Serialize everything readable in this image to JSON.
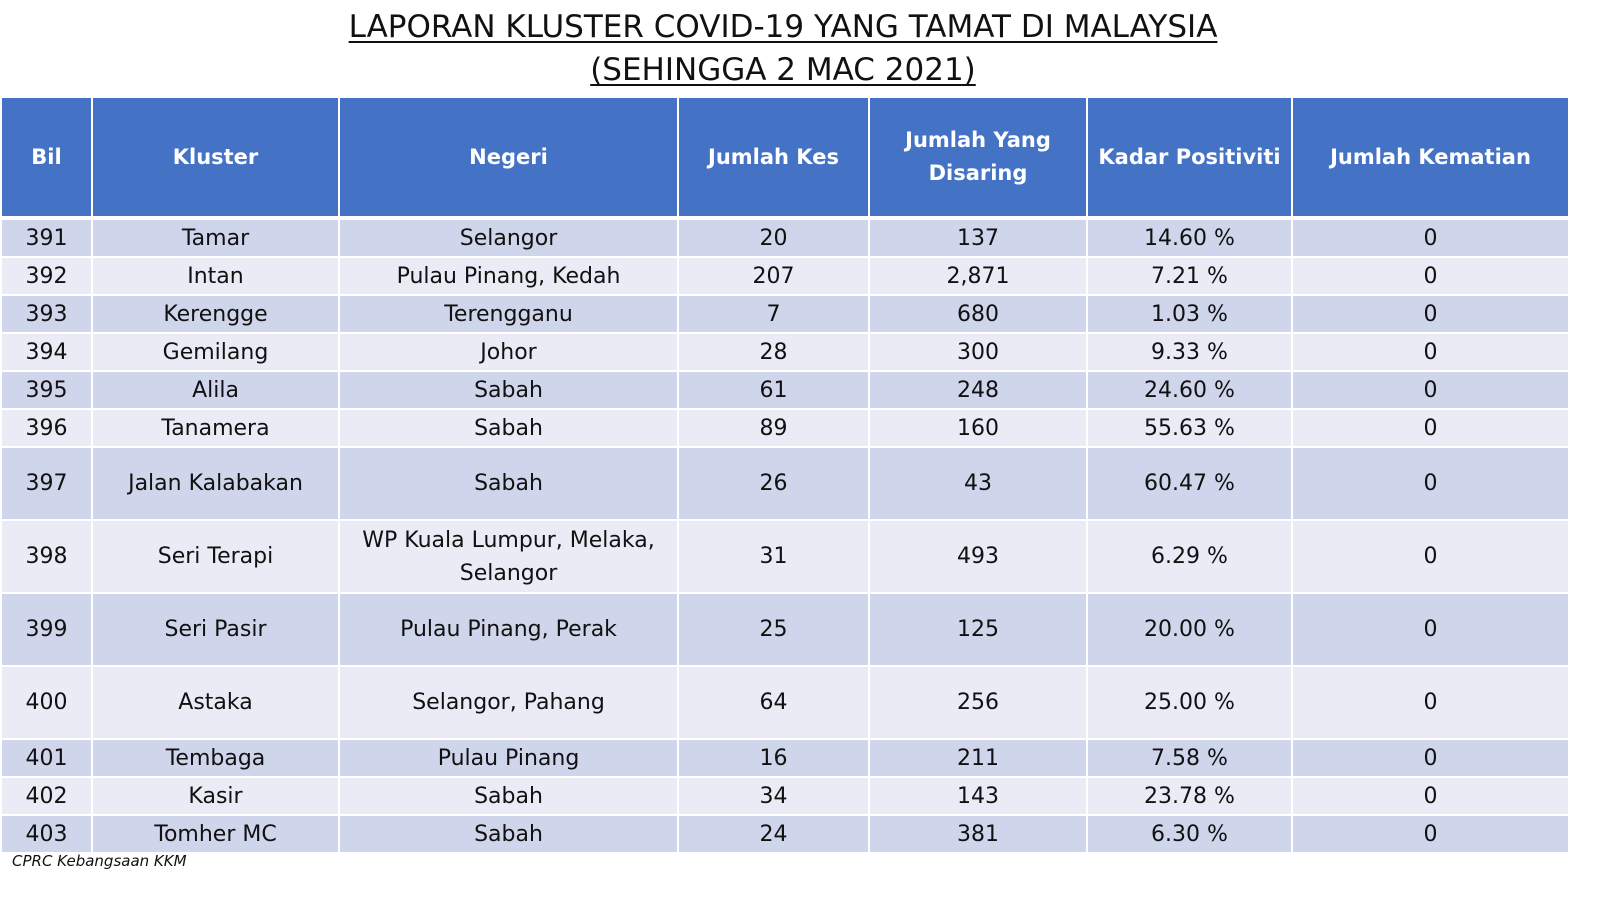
{
  "title": {
    "line1": "LAPORAN KLUSTER COVID-19 YANG TAMAT DI MALAYSIA",
    "line2": "(SEHINGGA 2 MAC 2021)"
  },
  "table": {
    "headers": {
      "bil": "Bil",
      "kluster": "Kluster",
      "negeri": "Negeri",
      "jumlah_kes": "Jumlah Kes",
      "jumlah_disaring": "Jumlah Yang Disaring",
      "kadar_positiviti": "Kadar Positiviti",
      "jumlah_kematian": "Jumlah Kematian"
    },
    "rows": [
      {
        "bil": "391",
        "kluster": "Tamar",
        "negeri": "Selangor",
        "jumlah_kes": "20",
        "jumlah_disaring": "137",
        "kadar_positiviti": "14.60 %",
        "jumlah_kematian": "0"
      },
      {
        "bil": "392",
        "kluster": "Intan",
        "negeri": "Pulau Pinang, Kedah",
        "jumlah_kes": "207",
        "jumlah_disaring": "2,871",
        "kadar_positiviti": "7.21 %",
        "jumlah_kematian": "0"
      },
      {
        "bil": "393",
        "kluster": "Kerengge",
        "negeri": "Terengganu",
        "jumlah_kes": "7",
        "jumlah_disaring": "680",
        "kadar_positiviti": "1.03 %",
        "jumlah_kematian": "0"
      },
      {
        "bil": "394",
        "kluster": "Gemilang",
        "negeri": "Johor",
        "jumlah_kes": "28",
        "jumlah_disaring": "300",
        "kadar_positiviti": "9.33 %",
        "jumlah_kematian": "0"
      },
      {
        "bil": "395",
        "kluster": "Alila",
        "negeri": "Sabah",
        "jumlah_kes": "61",
        "jumlah_disaring": "248",
        "kadar_positiviti": "24.60 %",
        "jumlah_kematian": "0"
      },
      {
        "bil": "396",
        "kluster": "Tanamera",
        "negeri": "Sabah",
        "jumlah_kes": "89",
        "jumlah_disaring": "160",
        "kadar_positiviti": "55.63 %",
        "jumlah_kematian": "0"
      },
      {
        "bil": "397",
        "kluster": "Jalan Kalabakan",
        "negeri": "Sabah",
        "jumlah_kes": "26",
        "jumlah_disaring": "43",
        "kadar_positiviti": "60.47 %",
        "jumlah_kematian": "0"
      },
      {
        "bil": "398",
        "kluster": "Seri Terapi",
        "negeri": "WP Kuala Lumpur, Melaka, Selangor",
        "jumlah_kes": "31",
        "jumlah_disaring": "493",
        "kadar_positiviti": "6.29 %",
        "jumlah_kematian": "0"
      },
      {
        "bil": "399",
        "kluster": "Seri Pasir",
        "negeri": "Pulau Pinang, Perak",
        "jumlah_kes": "25",
        "jumlah_disaring": "125",
        "kadar_positiviti": "20.00 %",
        "jumlah_kematian": "0"
      },
      {
        "bil": "400",
        "kluster": "Astaka",
        "negeri": "Selangor, Pahang",
        "jumlah_kes": "64",
        "jumlah_disaring": "256",
        "kadar_positiviti": "25.00 %",
        "jumlah_kematian": "0"
      },
      {
        "bil": "401",
        "kluster": "Tembaga",
        "negeri": "Pulau Pinang",
        "jumlah_kes": "16",
        "jumlah_disaring": "211",
        "kadar_positiviti": "7.58 %",
        "jumlah_kematian": "0"
      },
      {
        "bil": "402",
        "kluster": "Kasir",
        "negeri": "Sabah",
        "jumlah_kes": "34",
        "jumlah_disaring": "143",
        "kadar_positiviti": "23.78 %",
        "jumlah_kematian": "0"
      },
      {
        "bil": "403",
        "kluster": "Tomher MC",
        "negeri": "Sabah",
        "jumlah_kes": "24",
        "jumlah_disaring": "381",
        "kadar_positiviti": "6.30 %",
        "jumlah_kematian": "0"
      }
    ]
  },
  "footer": {
    "source": "CPRC Kebangsaan KKM"
  },
  "colors": {
    "header_bg": "#4472c4",
    "row_odd": "#cfd5ea",
    "row_even": "#e9ebf5"
  }
}
